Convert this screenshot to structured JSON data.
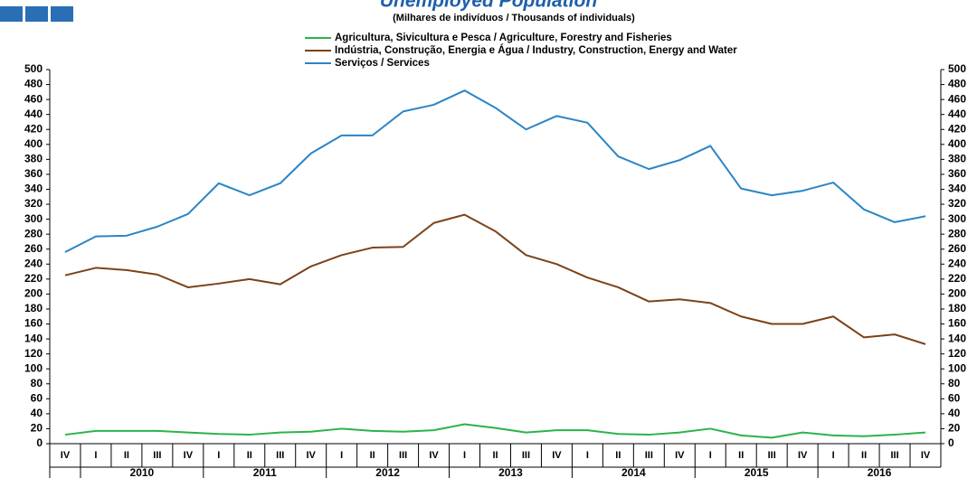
{
  "chart_data": {
    "type": "line",
    "title": "Unemployed Population",
    "subtitle": "(Milhares de indivíduos / Thousands of individuals)",
    "categories": [
      "IV",
      "I",
      "II",
      "III",
      "IV",
      "I",
      "II",
      "III",
      "IV",
      "I",
      "II",
      "III",
      "IV",
      "I",
      "II",
      "III",
      "IV",
      "I",
      "II",
      "III",
      "IV",
      "I",
      "II",
      "III",
      "IV",
      "I",
      "II",
      "III",
      "IV"
    ],
    "years": [
      "2010",
      "2011",
      "2012",
      "2013",
      "2014",
      "2015",
      "2016"
    ],
    "series": [
      {
        "name": "Agricultura, Sivicultura e Pesca / Agriculture, Forestry and Fisheries",
        "color": "#2bb34b",
        "values": [
          12,
          17,
          17,
          17,
          15,
          13,
          12,
          15,
          16,
          20,
          17,
          16,
          18,
          26,
          21,
          15,
          18,
          18,
          13,
          12,
          15,
          20,
          11,
          8,
          15,
          11,
          10,
          12,
          15
        ]
      },
      {
        "name": "Indústria, Construção, Energia e Água / Industry, Construction, Energy and Water",
        "color": "#7b4219",
        "values": [
          225,
          235,
          232,
          226,
          209,
          214,
          220,
          213,
          237,
          252,
          262,
          263,
          295,
          306,
          284,
          252,
          240,
          222,
          209,
          190,
          193,
          188,
          170,
          160,
          160,
          170,
          142,
          146,
          133
        ]
      },
      {
        "name": "Serviços / Services",
        "color": "#2a85c6",
        "values": [
          256,
          277,
          278,
          290,
          307,
          348,
          332,
          348,
          388,
          412,
          412,
          444,
          453,
          472,
          449,
          420,
          438,
          429,
          384,
          367,
          379,
          398,
          341,
          332,
          338,
          349,
          313,
          296,
          304
        ]
      }
    ],
    "ylim": [
      0,
      500
    ],
    "yticks": [
      0,
      20,
      40,
      60,
      80,
      100,
      120,
      140,
      160,
      180,
      200,
      220,
      240,
      260,
      280,
      300,
      320,
      340,
      360,
      380,
      400,
      420,
      440,
      460,
      480,
      500
    ],
    "y2lim": [
      0,
      500
    ],
    "y2ticks": [
      0,
      20,
      40,
      60,
      80,
      100,
      120,
      140,
      160,
      180,
      200,
      220,
      240,
      260,
      280,
      300,
      320,
      340,
      360,
      380,
      400,
      420,
      440,
      460,
      480,
      500
    ],
    "grid": false
  }
}
